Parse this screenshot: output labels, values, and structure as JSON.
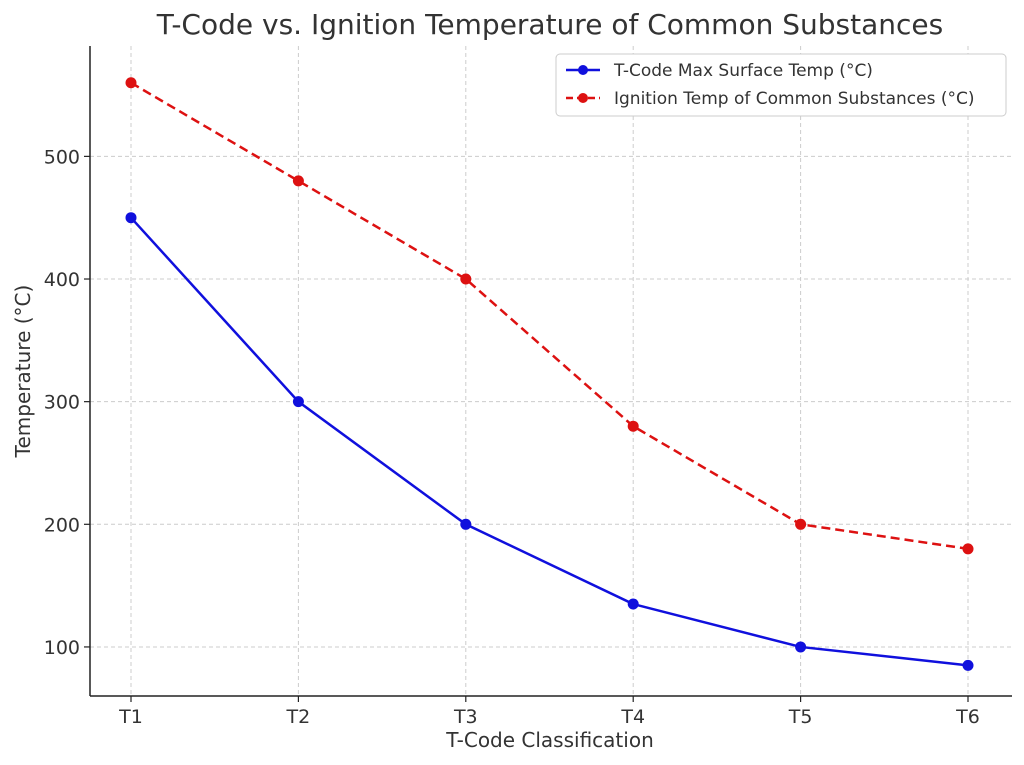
{
  "chart_data": {
    "type": "line",
    "title": "T-Code vs. Ignition Temperature of Common Substances",
    "xlabel": "T-Code Classification",
    "ylabel": "Temperature (°C)",
    "categories": [
      "T1",
      "T2",
      "T3",
      "T4",
      "T5",
      "T6"
    ],
    "ylim": [
      60,
      590
    ],
    "yticks": [
      100,
      200,
      300,
      400,
      500
    ],
    "grid": true,
    "legend_position": "top-right",
    "series": [
      {
        "name": "T-Code Max Surface Temp (°C)",
        "values": [
          450,
          300,
          200,
          135,
          100,
          85
        ],
        "color": "#1010dd",
        "style": "solid",
        "marker": "circle"
      },
      {
        "name": "Ignition Temp of Common Substances (°C)",
        "values": [
          560,
          480,
          400,
          280,
          200,
          180
        ],
        "color": "#dd1111",
        "style": "dashed",
        "marker": "circle"
      }
    ]
  }
}
